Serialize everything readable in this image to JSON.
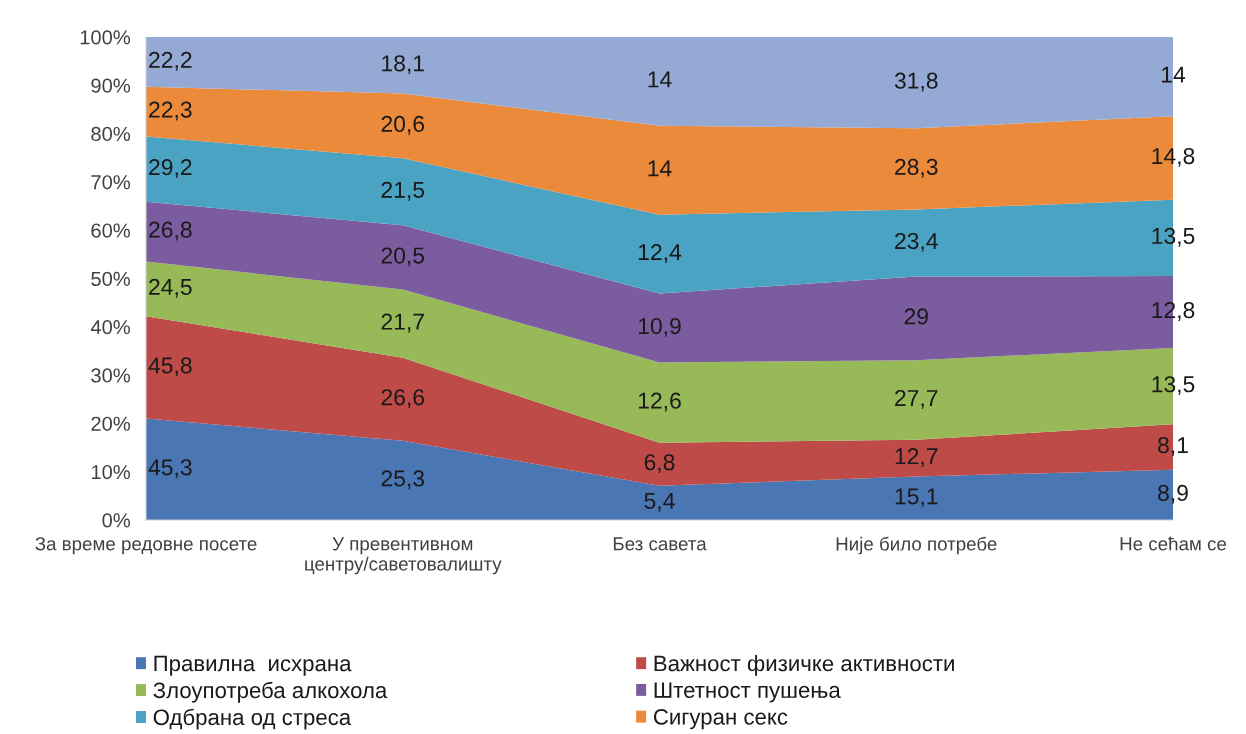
{
  "chart_data": {
    "type": "area",
    "stacked": true,
    "categories": [
      "За време редовне посете",
      "У превентивном\nцентру/саветовалишту",
      "Без савета",
      "Није било потребе",
      "Не сећам се"
    ],
    "series": [
      {
        "name": "Правилна  исхрана",
        "color": "#4a76b4",
        "values": [
          21.0,
          16.4,
          7.1,
          9.0,
          10.4
        ]
      },
      {
        "name": "Важност физичке активности",
        "color": "#be4b48",
        "values": [
          21.2,
          17.2,
          8.9,
          7.6,
          9.4
        ]
      },
      {
        "name": "Злоупотреба алкохола",
        "color": "#97b957",
        "values": [
          11.3,
          14.1,
          16.6,
          16.5,
          15.8
        ]
      },
      {
        "name": "Штетност пушења",
        "color": "#7b5c9e",
        "values": [
          12.4,
          13.3,
          14.3,
          17.3,
          14.9
        ]
      },
      {
        "name": "Одбрана од стреса",
        "color": "#4aa3c2",
        "values": [
          13.5,
          13.9,
          16.3,
          13.9,
          15.8
        ]
      },
      {
        "name": "Сигуран секс",
        "color": "#ec8a3c",
        "values": [
          10.3,
          13.4,
          18.4,
          16.8,
          17.3
        ]
      },
      {
        "color": "#94a9d4",
        "values": [
          10.3,
          11.7,
          18.4,
          18.9,
          16.4
        ]
      }
    ],
    "annotations": [
      {
        "text": "45,3",
        "x": "За време редовне посете",
        "y": 21.0
      },
      {
        "text": "45,8",
        "x": "За време редовне посете",
        "y": 42.2
      },
      {
        "text": "24,5",
        "x": "За време редовне посете",
        "y": 53.5
      },
      {
        "text": "26,8",
        "x": "За време редовне посете",
        "y": 65.9
      },
      {
        "text": "29,2",
        "x": "За време редовне посете",
        "y": 79.4
      },
      {
        "text": "22,3",
        "x": "За време редовне посете",
        "y": 89.7
      },
      {
        "text": "22,2",
        "x": "За време редовне посете",
        "y": 100.0
      },
      {
        "text": "25,3",
        "x": "У превентивном\nцентру/саветовалишту",
        "y": 16.4
      },
      {
        "text": "26,6",
        "x": "У превентивном\nцентру/саветовалишту",
        "y": 33.6
      },
      {
        "text": "21,7",
        "x": "У превентивном\nцентру/саветовалишту",
        "y": 47.7
      },
      {
        "text": "20,5",
        "x": "У превентивном\nцентру/саветовалишту",
        "y": 61.0
      },
      {
        "text": "21,5",
        "x": "У превентивном\nцентру/саветовалишту",
        "y": 74.9
      },
      {
        "text": "20,6",
        "x": "У превентивном\nцентру/саветовалишту",
        "y": 88.3
      },
      {
        "text": "18,1",
        "x": "У превентивном\nцентру/саветовалишту",
        "y": 100.0
      },
      {
        "text": "5,4",
        "x": "Без савета",
        "y": 7.1
      },
      {
        "text": "6,8",
        "x": "Без савета",
        "y": 16.0
      },
      {
        "text": "12,6",
        "x": "Без савета",
        "y": 32.6
      },
      {
        "text": "10,9",
        "x": "Без савета",
        "y": 46.9
      },
      {
        "text": "12,4",
        "x": "Без савета",
        "y": 63.2
      },
      {
        "text": "14",
        "x": "Без савета",
        "y": 81.6
      },
      {
        "text": "14",
        "x": "Без савета",
        "y": 100.0
      },
      {
        "text": "15,1",
        "x": "Није било потребе",
        "y": 9.0
      },
      {
        "text": "12,7",
        "x": "Није било потребе",
        "y": 16.6
      },
      {
        "text": "27,7",
        "x": "Није било потребе",
        "y": 33.1
      },
      {
        "text": "29",
        "x": "Није било потребе",
        "y": 50.4
      },
      {
        "text": "23,4",
        "x": "Није било потребе",
        "y": 64.3
      },
      {
        "text": "28,3",
        "x": "Није било потребе",
        "y": 81.1
      },
      {
        "text": "31,8",
        "x": "Није било потребе",
        "y": 100.0
      },
      {
        "text": "8,9",
        "x": "Не сећам се",
        "y": 10.4
      },
      {
        "text": "8,1",
        "x": "Не сећам се",
        "y": 19.8
      },
      {
        "text": "13,5",
        "x": "Не сећам се",
        "y": 35.6
      },
      {
        "text": "12,8",
        "x": "Не сећам се",
        "y": 50.5
      },
      {
        "text": "13,5",
        "x": "Не сећам се",
        "y": 66.3
      },
      {
        "text": "14,8",
        "x": "Не сећам се",
        "y": 83.6
      },
      {
        "text": "14",
        "x": "Не сећам се",
        "y": 100.0
      }
    ],
    "ylim": [
      0,
      100
    ],
    "yticks": [
      {
        "value": 0,
        "label": "0%"
      },
      {
        "value": 10,
        "label": "10%"
      },
      {
        "value": 20,
        "label": "20%"
      },
      {
        "value": 30,
        "label": "30%"
      },
      {
        "value": 40,
        "label": "40%"
      },
      {
        "value": 50,
        "label": "50%"
      },
      {
        "value": 60,
        "label": "60%"
      },
      {
        "value": 70,
        "label": "70%"
      },
      {
        "value": 80,
        "label": "80%"
      },
      {
        "value": 90,
        "label": "90%"
      },
      {
        "value": 100,
        "label": "100%"
      }
    ],
    "legend": "bottom"
  }
}
